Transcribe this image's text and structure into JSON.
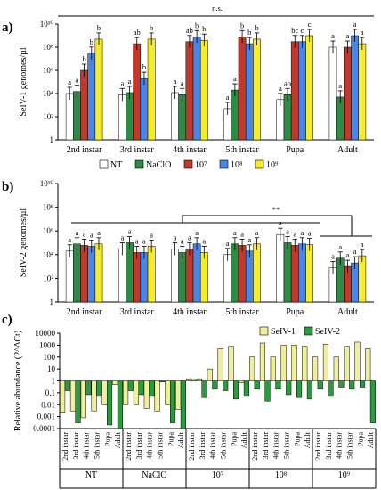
{
  "colors": {
    "NT": "#ffffff",
    "NaClO": "#2e8b45",
    "1e7": "#c0392b",
    "1e8": "#4a86e8",
    "1e9": "#f5ec2c",
    "SeIV-1": "#f1f09a",
    "SeIV-2": "#2a9a3c"
  },
  "legend": {
    "items": [
      {
        "key": "NT",
        "label": "NT"
      },
      {
        "key": "NaClO",
        "label": "NaClO"
      },
      {
        "key": "1e7",
        "label": "10⁷"
      },
      {
        "key": "1e8",
        "label": "10⁸"
      },
      {
        "key": "1e9",
        "label": "10⁹"
      }
    ]
  },
  "chart_data": [
    {
      "panel": "a)",
      "type": "bar",
      "ylabel": "SeIV-1 genomes/µl",
      "yscale": "log",
      "ylim": [
        1,
        10000000000
      ],
      "yticks": [
        "1",
        "10²",
        "10⁴",
        "10⁶",
        "10⁸",
        "10¹⁰"
      ],
      "categories": [
        "2nd instar",
        "3rd instar",
        "4th instar",
        "5th instar",
        "Pupa",
        "Adult"
      ],
      "series": [
        {
          "name": "NT",
          "values": [
            10000,
            8000,
            12000,
            500,
            3000,
            100000000
          ],
          "letters": [
            "a",
            "a",
            "a",
            "a",
            "a",
            "a"
          ]
        },
        {
          "name": "NaClO",
          "values": [
            15000,
            12000,
            8000,
            20000,
            8000,
            5000
          ],
          "letters": [
            "a",
            "a",
            "a",
            "a",
            "ab",
            "a"
          ]
        },
        {
          "name": "10⁷",
          "values": [
            1000000,
            200000000,
            300000000,
            800000000,
            300000000,
            100000000
          ],
          "letters": [
            "b",
            "ab",
            "ab",
            "b",
            "bc",
            "a"
          ]
        },
        {
          "name": "10⁸",
          "values": [
            30000000,
            200000,
            800000000,
            200000000,
            300000000,
            1000000000
          ],
          "letters": [
            "b",
            "b",
            "b",
            "b",
            "c",
            "a"
          ]
        },
        {
          "name": "10⁹",
          "values": [
            500000000,
            500000000,
            400000000,
            500000000,
            1000000000,
            200000000
          ],
          "letters": [
            "b",
            "b",
            "b",
            "b",
            "c",
            "a"
          ]
        }
      ],
      "annotation": "n.s."
    },
    {
      "panel": "b)",
      "type": "bar",
      "ylabel": "SeIV-2 genomes/µl",
      "yscale": "log",
      "ylim": [
        1,
        10000000000
      ],
      "yticks": [
        "1",
        "10²",
        "10⁴",
        "10⁶",
        "10⁸",
        "10¹⁰"
      ],
      "categories": [
        "2nd instar",
        "3rd instar",
        "4th instar",
        "5th instar",
        "Pupa",
        "Adult"
      ],
      "series": [
        {
          "name": "NT",
          "values": [
            20000,
            30000,
            30000,
            10000,
            500000,
            800
          ],
          "letters": [
            "a",
            "a",
            "a",
            "a",
            "a",
            "a"
          ]
        },
        {
          "name": "NaClO",
          "values": [
            80000,
            100000,
            15000,
            80000,
            100000,
            5000
          ],
          "letters": [
            "a",
            "a",
            "a",
            "a",
            "a",
            "a"
          ]
        },
        {
          "name": "10⁷",
          "values": [
            60000,
            15000,
            30000,
            60000,
            60000,
            1000
          ],
          "letters": [
            "a",
            "a",
            "a",
            "a",
            "a",
            "a"
          ]
        },
        {
          "name": "10⁸",
          "values": [
            50000,
            15000,
            80000,
            20000,
            80000,
            2000
          ],
          "letters": [
            "a",
            "a",
            "a",
            "a",
            "a",
            "a"
          ]
        },
        {
          "name": "10⁹",
          "values": [
            80000,
            50000,
            15000,
            80000,
            70000,
            8000
          ],
          "letters": [
            "a",
            "a",
            "a",
            "a",
            "a",
            "a"
          ]
        }
      ],
      "annotation": "**"
    },
    {
      "panel": "c)",
      "type": "bar",
      "ylabel": "Relative abundance (2^ΔCt)",
      "yscale": "log",
      "ylim": [
        0.0001,
        10000
      ],
      "yticks": [
        "0.0001",
        "0.001",
        "0.01",
        "0.1",
        "1",
        "10",
        "100",
        "1000",
        "10000"
      ],
      "groups": [
        {
          "name": "NT",
          "stages": [
            "2nd instar",
            "3rd instar",
            "4th instar",
            "5th instar",
            "Pupa",
            "Adult"
          ]
        },
        {
          "name": "NaClO",
          "stages": [
            "2nd instar",
            "3rd instar",
            "4th instar",
            "5th instar",
            "Pupa",
            "Adult"
          ]
        },
        {
          "name": "10⁷",
          "stages": [
            "2nd instar",
            "3rd instar",
            "4th instar",
            "5th instar",
            "Pupa",
            "Adult"
          ]
        },
        {
          "name": "10⁸",
          "stages": [
            "2nd instar",
            "3rd instar",
            "4th instar",
            "5th instar",
            "Pupa",
            "Adult"
          ]
        },
        {
          "name": "10⁹",
          "stages": [
            "2nd instar",
            "3rd instar",
            "4th instar",
            "5th instar",
            "Pupa",
            "Adult"
          ]
        }
      ],
      "series": [
        {
          "name": "SeIV-1",
          "values": [
            0.002,
            0.003,
            0.0008,
            0.003,
            0.01,
            0.5,
            0.01,
            0.01,
            0.005,
            0.003,
            0.01,
            0.004,
            1.5,
            1.5,
            10,
            500,
            800,
            0.7,
            100,
            1500,
            100,
            1000,
            1000,
            800,
            100,
            1200,
            100,
            800,
            1800,
            500
          ]
        },
        {
          "name": "SeIV-2",
          "values": [
            0.15,
            0.0003,
            0.07,
            0.05,
            0.0002,
            0.0001,
            0.15,
            0.07,
            0.05,
            0.8,
            0.0003,
            0.0001,
            1.3,
            0.04,
            0.2,
            0.15,
            0.03,
            0.05,
            0.2,
            0.02,
            0.2,
            0.07,
            0.04,
            0.03,
            0.2,
            0.05,
            0.3,
            0.2,
            0.3,
            0.0003
          ]
        }
      ],
      "legend": [
        "SeIV-1",
        "SeIV-2"
      ]
    }
  ]
}
